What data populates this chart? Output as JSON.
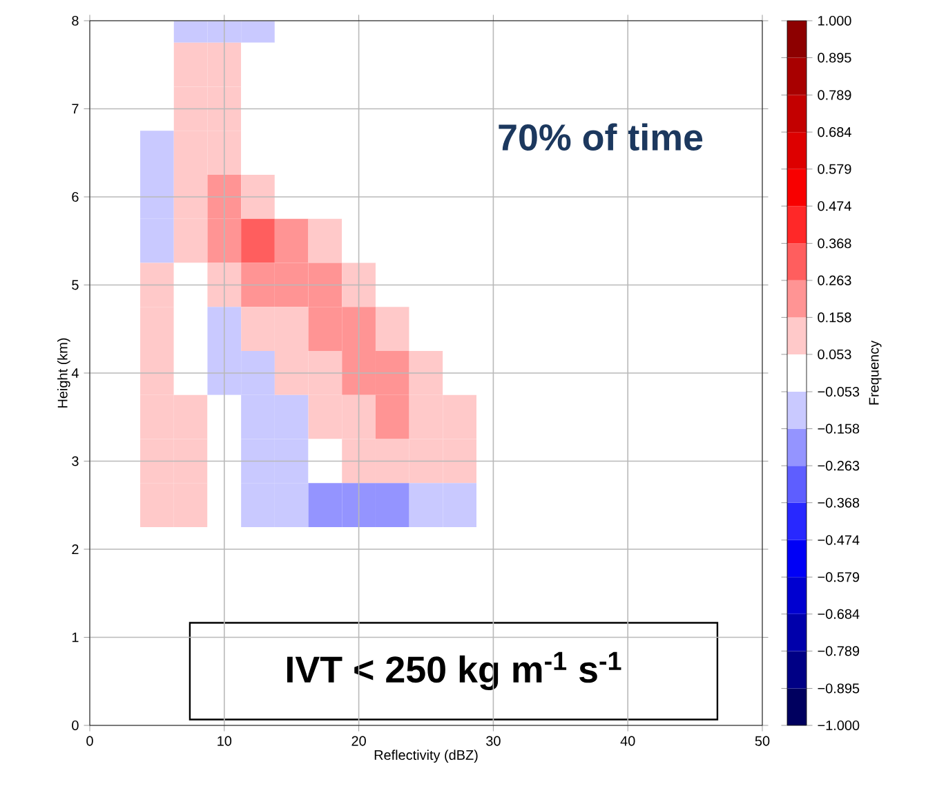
{
  "chart_data": {
    "type": "heatmap",
    "xlabel": "Reflectivity (dBZ)",
    "ylabel": "Height (km)",
    "clabel": "Frequency",
    "annotations": [
      "70% of time",
      "IVT < 250  kg m$^{-1}$ s$^{-1}$"
    ],
    "grid": true,
    "categories": [
      "0",
      null,
      null,
      null,
      "10",
      null,
      null,
      null,
      "20",
      null,
      null,
      null,
      "30",
      null,
      null,
      null,
      "40",
      null,
      null,
      null,
      "50"
    ],
    "y_categories": [
      "8",
      null,
      "7",
      null,
      "6",
      null,
      "5",
      null,
      "4",
      null,
      "3",
      null,
      "2",
      null,
      "1",
      null,
      "0"
    ],
    "cells": [
      [
        0,
        0,
        0,
        -0.1,
        -0.1,
        -0.1,
        0,
        0,
        0,
        0,
        0,
        0,
        0,
        0,
        0,
        0,
        0,
        0,
        0,
        0,
        0
      ],
      [
        0,
        0,
        0,
        0.1,
        0.1,
        0,
        0,
        0,
        0,
        0,
        0,
        0,
        0,
        0,
        0,
        0,
        0,
        0,
        0,
        0,
        0
      ],
      [
        0,
        0,
        0,
        0.1,
        0.1,
        0,
        0,
        0,
        0,
        0,
        0,
        0,
        0,
        0,
        0,
        0,
        0,
        0,
        0,
        0,
        0
      ],
      [
        0,
        0,
        -0.1,
        0.1,
        0.1,
        0,
        0,
        0,
        0,
        0,
        0,
        0,
        0,
        0,
        0,
        0,
        0,
        0,
        0,
        0,
        0
      ],
      [
        0,
        0,
        -0.1,
        0.1,
        0.2,
        0.1,
        0,
        0,
        0,
        0,
        0,
        0,
        0,
        0,
        0,
        0,
        0,
        0,
        0,
        0,
        0
      ],
      [
        0,
        0,
        -0.1,
        0.1,
        0.2,
        0.3,
        0.2,
        0.1,
        0,
        0,
        0,
        0,
        0,
        0,
        0,
        0,
        0,
        0,
        0,
        0,
        0
      ],
      [
        0,
        0,
        0.1,
        0,
        0.1,
        0.2,
        0.2,
        0.2,
        0.1,
        0,
        0,
        0,
        0,
        0,
        0,
        0,
        0,
        0,
        0,
        0,
        0
      ],
      [
        0,
        0,
        0.1,
        0,
        -0.1,
        0.1,
        0.1,
        0.2,
        0.2,
        0.1,
        0,
        0,
        0,
        0,
        0,
        0,
        0,
        0,
        0,
        0,
        0
      ],
      [
        0,
        0,
        0.1,
        0,
        -0.1,
        -0.1,
        0.1,
        0.1,
        0.2,
        0.2,
        0.1,
        0,
        0,
        0,
        0,
        0,
        0,
        0,
        0,
        0,
        0
      ],
      [
        0,
        0,
        0.1,
        0.1,
        0,
        -0.1,
        -0.1,
        0.1,
        0.1,
        0.2,
        0.1,
        0.1,
        0,
        0,
        0,
        0,
        0,
        0,
        0,
        0,
        0
      ],
      [
        0,
        0,
        0.1,
        0.1,
        0,
        -0.1,
        -0.1,
        0,
        0.1,
        0.1,
        0.1,
        0.1,
        0,
        0,
        0,
        0,
        0,
        0,
        0,
        0,
        0
      ],
      [
        0,
        0,
        0.1,
        0.1,
        0,
        -0.1,
        -0.1,
        -0.2,
        -0.2,
        -0.2,
        -0.1,
        -0.1,
        0,
        0,
        0,
        0,
        0,
        0,
        0,
        0,
        0
      ],
      [
        0,
        0,
        0,
        0,
        0,
        0,
        0,
        0,
        0,
        0,
        0,
        0,
        0,
        0,
        0,
        0,
        0,
        0,
        0,
        0,
        0
      ],
      [
        0,
        0,
        0,
        0,
        0,
        0,
        0,
        0,
        0,
        0,
        0,
        0,
        0,
        0,
        0,
        0,
        0,
        0,
        0,
        0,
        0
      ],
      [
        0,
        0,
        0,
        0,
        0,
        0,
        0,
        0,
        0,
        0,
        0,
        0,
        0,
        0,
        0,
        0,
        0,
        0,
        0,
        0,
        0
      ],
      [
        0,
        0,
        0,
        0,
        0,
        0,
        0,
        0,
        0,
        0,
        0,
        0,
        0,
        0,
        0,
        0,
        0,
        0,
        0,
        0,
        0
      ],
      [
        0,
        0,
        0,
        0,
        0,
        0,
        0,
        0,
        0,
        0,
        0,
        0,
        0,
        0,
        0,
        0,
        0,
        0,
        0,
        0,
        0
      ]
    ],
    "clim": [
      -1,
      1
    ],
    "cticks": [
      {
        "value": -1.0,
        "label": "−1.000"
      },
      {
        "value": -0.895,
        "label": "−0.895"
      },
      {
        "value": -0.789,
        "label": "−0.789"
      },
      {
        "value": -0.684,
        "label": "−0.684"
      },
      {
        "value": -0.579,
        "label": "−0.579"
      },
      {
        "value": -0.474,
        "label": "−0.474"
      },
      {
        "value": -0.368,
        "label": "−0.368"
      },
      {
        "value": -0.263,
        "label": "−0.263"
      },
      {
        "value": -0.158,
        "label": "−0.158"
      },
      {
        "value": -0.053,
        "label": "−0.053"
      },
      {
        "value": 0.053,
        "label": "0.053"
      },
      {
        "value": 0.158,
        "label": "0.158"
      },
      {
        "value": 0.263,
        "label": "0.263"
      },
      {
        "value": 0.368,
        "label": "0.368"
      },
      {
        "value": 0.474,
        "label": "0.474"
      },
      {
        "value": 0.579,
        "label": "0.579"
      },
      {
        "value": 0.684,
        "label": "0.684"
      },
      {
        "value": 0.789,
        "label": "0.789"
      },
      {
        "value": 0.895,
        "label": "0.895"
      },
      {
        "value": 1.0,
        "label": "1.000"
      }
    ]
  }
}
